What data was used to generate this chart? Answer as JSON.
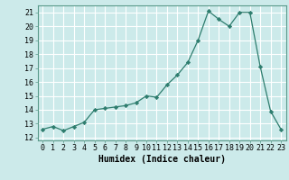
{
  "x": [
    0,
    1,
    2,
    3,
    4,
    5,
    6,
    7,
    8,
    9,
    10,
    11,
    12,
    13,
    14,
    15,
    16,
    17,
    18,
    19,
    20,
    21,
    22,
    23
  ],
  "y": [
    12.6,
    12.8,
    12.5,
    12.8,
    13.1,
    14.0,
    14.1,
    14.2,
    14.3,
    14.5,
    15.0,
    14.9,
    15.8,
    16.5,
    17.4,
    19.0,
    21.1,
    20.5,
    20.0,
    21.0,
    21.0,
    17.1,
    13.9,
    12.6
  ],
  "line_color": "#2e7d6e",
  "marker": "D",
  "marker_size": 2.2,
  "bg_color": "#cceaea",
  "grid_color": "#ffffff",
  "xlabel": "Humidex (Indice chaleur)",
  "xlim": [
    -0.5,
    23.5
  ],
  "ylim": [
    11.8,
    21.5
  ],
  "yticks": [
    12,
    13,
    14,
    15,
    16,
    17,
    18,
    19,
    20,
    21
  ],
  "xtick_labels": [
    "0",
    "1",
    "2",
    "3",
    "4",
    "5",
    "6",
    "7",
    "8",
    "9",
    "10",
    "11",
    "12",
    "13",
    "14",
    "15",
    "16",
    "17",
    "18",
    "19",
    "20",
    "21",
    "22",
    "23"
  ],
  "label_fontsize": 7,
  "tick_fontsize": 6
}
